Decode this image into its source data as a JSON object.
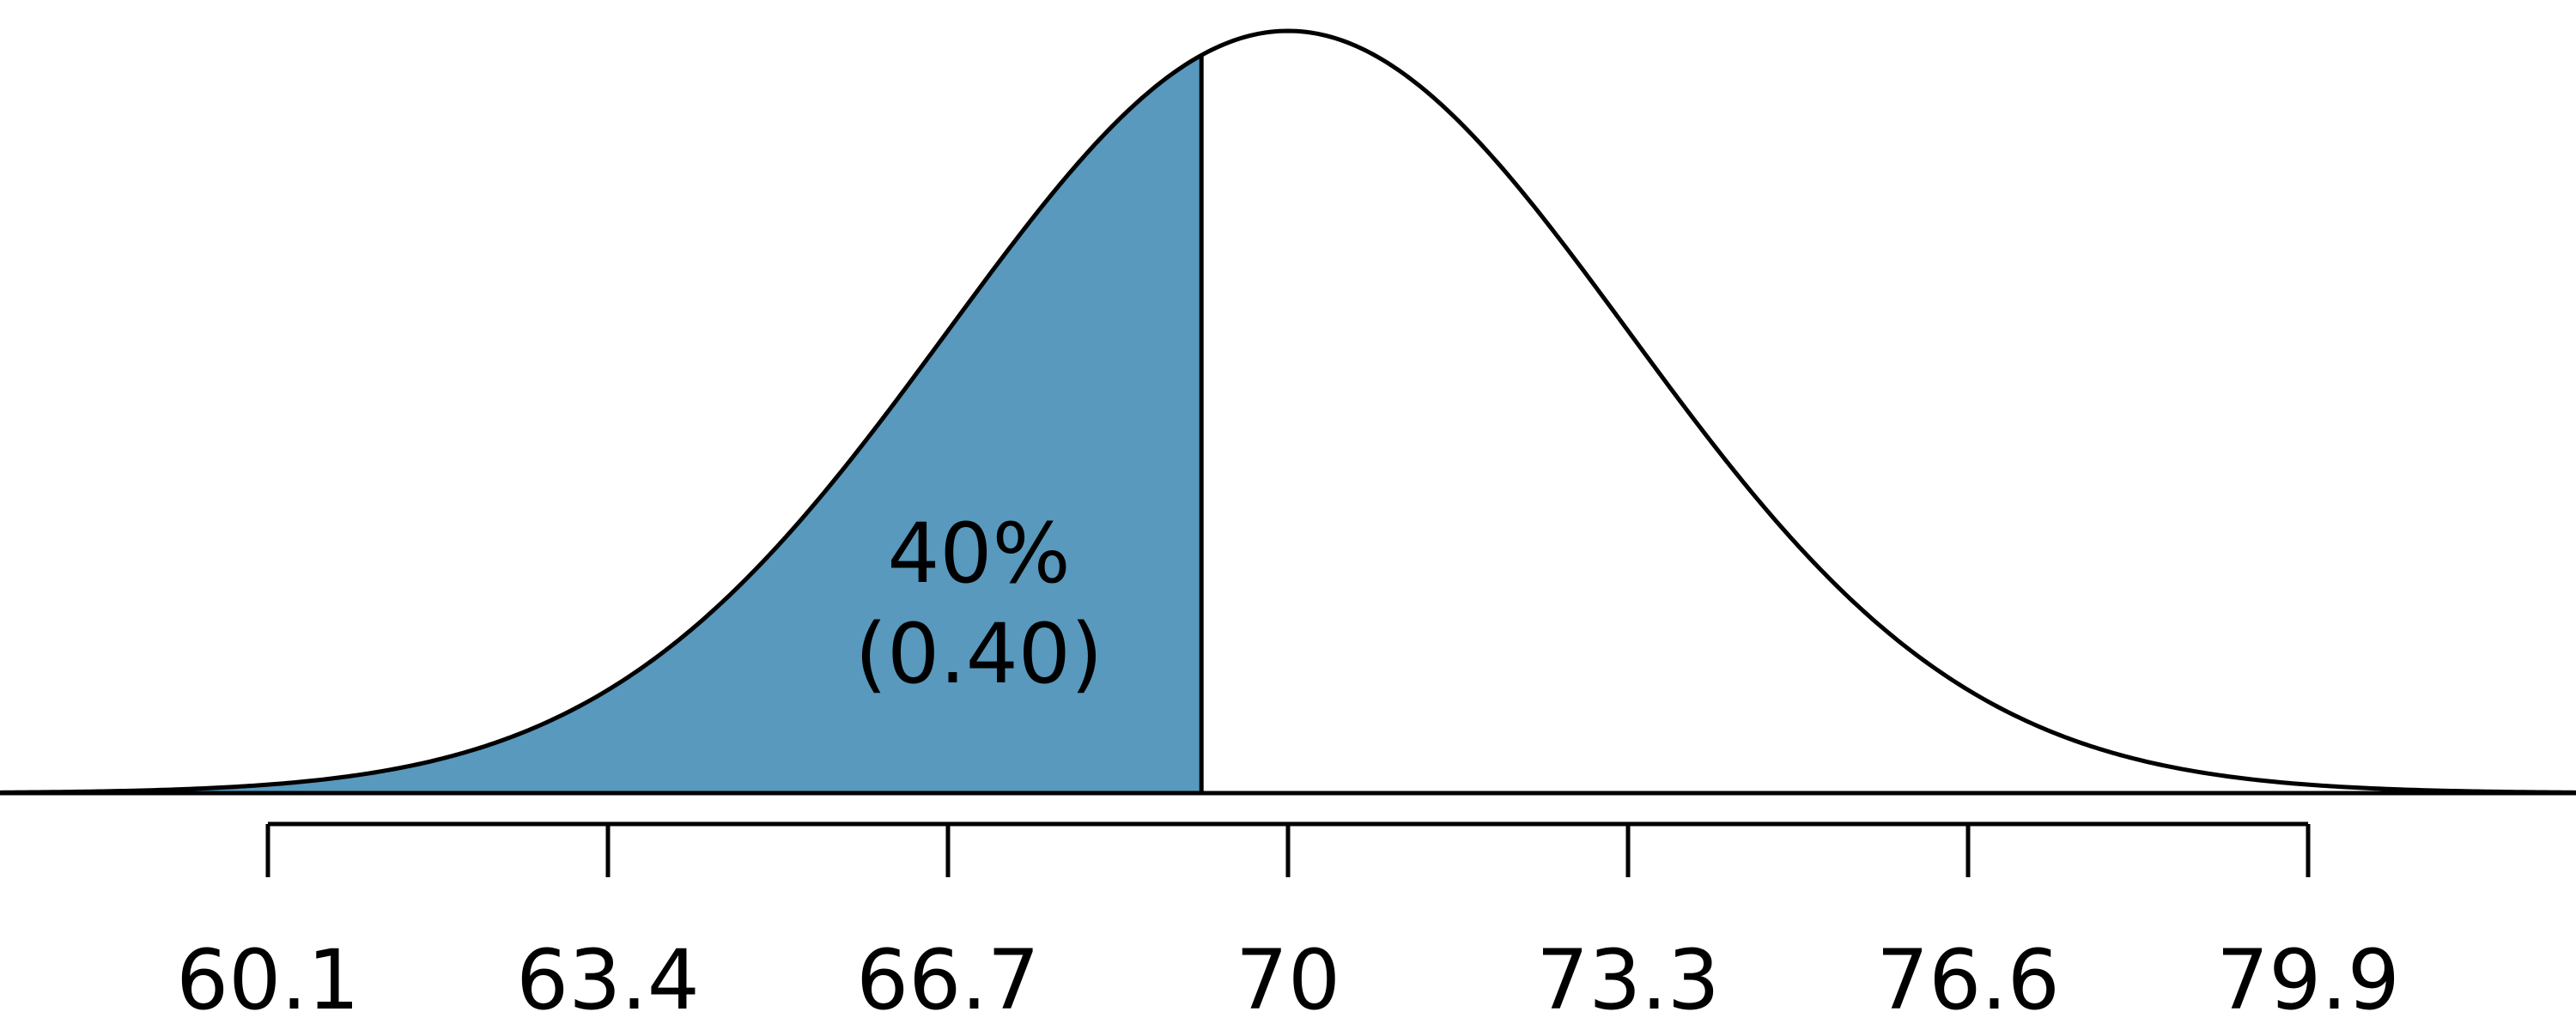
{
  "chart_data": {
    "type": "area",
    "title": "",
    "xlabel": "",
    "ylabel": "",
    "distribution": "normal",
    "mean": 70,
    "sd": 3.3,
    "x_ticks": [
      60.1,
      63.4,
      66.7,
      70,
      73.3,
      76.6,
      79.9
    ],
    "tick_labels": [
      "60.1",
      "63.4",
      "66.7",
      "70",
      "73.3",
      "76.6",
      "79.9"
    ],
    "xlim": [
      57.5,
      82.5
    ],
    "shaded_region": {
      "from": "-inf",
      "to": 69.16,
      "area": 0.4
    },
    "annotation": {
      "line1": "40%",
      "line2": "(0.40)"
    },
    "colors": {
      "shade": "#5899bd",
      "curve": "#000000",
      "background": "#ffffff"
    },
    "grid": false,
    "legend": "none"
  }
}
